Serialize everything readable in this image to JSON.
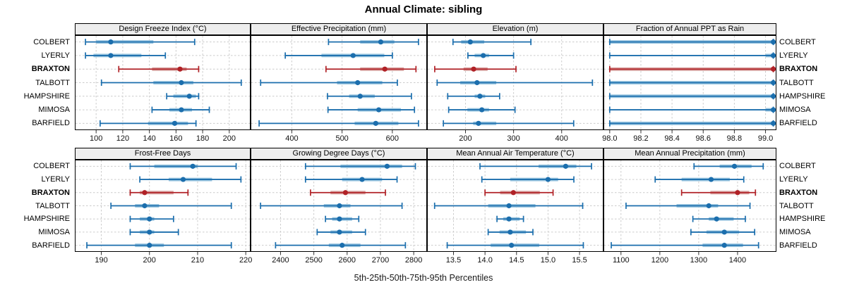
{
  "title": "Annual Climate: sibling",
  "caption": "5th-25th-50th-75th-95th Percentiles",
  "sites": [
    "COLBERT",
    "LYERLY",
    "BRAXTON",
    "TALBOTT",
    "HAMPSHIRE",
    "MIMOSA",
    "BARFIELD"
  ],
  "highlight_site": "BRAXTON",
  "colors": {
    "series_blue": "#1B6EAD",
    "series_blue_light": "#9BC6E0",
    "highlight_red": "#B02126",
    "highlight_red_light": "#D9A6A4",
    "grid": "#cccccc",
    "strip_bg": "#ededed",
    "panel_border": "#000000"
  },
  "chart_data": {
    "type": "scatter",
    "variant": "dot-whisker-percentiles",
    "percentiles": [
      5,
      25,
      50,
      75,
      95
    ],
    "grid": "on",
    "rows_top_to_bottom": [
      "COLBERT",
      "LYERLY",
      "BRAXTON",
      "TALBOTT",
      "HAMPSHIRE",
      "MIMOSA",
      "BARFIELD"
    ],
    "panels": [
      {
        "title": "Design Freeze Index (°C)",
        "band": "top",
        "domain": [
          84,
          216
        ],
        "ticks": [
          "100",
          "120",
          "140",
          "160",
          "180",
          "200"
        ],
        "values": {
          "COLBERT": [
            92,
            100,
            111,
            143,
            174
          ],
          "LYERLY": [
            92,
            98,
            111,
            134,
            152
          ],
          "BRAXTON": [
            117,
            142,
            163,
            168,
            177
          ],
          "TALBOTT": [
            104,
            143,
            164,
            173,
            209
          ],
          "HAMPSHIRE": [
            153,
            158,
            170,
            175,
            177
          ],
          "MIMOSA": [
            142,
            155,
            164,
            172,
            185
          ],
          "BARFIELD": [
            103,
            139,
            159,
            169,
            175
          ]
        }
      },
      {
        "title": "Effective Precipitation (mm)",
        "band": "top",
        "domain": [
          318,
          669
        ],
        "ticks": [
          "400",
          "500",
          "600"
        ],
        "values": {
          "COLBERT": [
            473,
            536,
            577,
            604,
            652
          ],
          "LYERLY": [
            387,
            459,
            522,
            584,
            600
          ],
          "BRAXTON": [
            468,
            536,
            585,
            623,
            647
          ],
          "TALBOTT": [
            338,
            490,
            531,
            580,
            610
          ],
          "HAMPSHIRE": [
            471,
            514,
            536,
            565,
            638
          ],
          "MIMOSA": [
            472,
            531,
            573,
            617,
            644
          ],
          "BARFIELD": [
            335,
            525,
            567,
            612,
            652
          ]
        }
      },
      {
        "title": "Elevation (m)",
        "band": "top",
        "domain": [
          120,
          487
        ],
        "ticks": [
          "200",
          "300",
          "400"
        ],
        "values": {
          "COLBERT": [
            174,
            191,
            210,
            239,
            336
          ],
          "LYERLY": [
            205,
            219,
            237,
            249,
            300
          ],
          "BRAXTON": [
            136,
            196,
            217,
            246,
            305
          ],
          "TALBOTT": [
            141,
            189,
            224,
            264,
            464
          ],
          "HAMPSHIRE": [
            163,
            219,
            230,
            241,
            271
          ],
          "MIMOSA": [
            165,
            204,
            234,
            249,
            303
          ],
          "BARFIELD": [
            154,
            216,
            227,
            264,
            425
          ]
        }
      },
      {
        "title": "Fraction of Annual PPT as Rain",
        "band": "top",
        "domain": [
          97.96,
          99.07
        ],
        "ticks": [
          "98.0",
          "98.2",
          "98.4",
          "98.6",
          "98.8",
          "99.0"
        ],
        "values": {
          "COLBERT": [
            98.0,
            98.0,
            99.05,
            99.05,
            99.05
          ],
          "LYERLY": [
            98.0,
            99.0,
            99.05,
            99.05,
            99.05
          ],
          "BRAXTON": [
            98.0,
            98.0,
            99.05,
            99.05,
            99.05
          ],
          "TALBOTT": [
            98.0,
            98.0,
            99.05,
            99.05,
            99.05
          ],
          "HAMPSHIRE": [
            98.0,
            98.0,
            99.05,
            99.05,
            99.05
          ],
          "MIMOSA": [
            98.0,
            99.0,
            99.05,
            99.05,
            99.05
          ],
          "BARFIELD": [
            98.0,
            98.0,
            99.05,
            99.05,
            99.05
          ]
        }
      },
      {
        "title": "Frost-Free Days",
        "band": "bottom",
        "domain": [
          184.5,
          221
        ],
        "ticks": [
          "190",
          "200",
          "210",
          "220"
        ],
        "values": {
          "COLBERT": [
            196,
            201,
            209,
            210,
            218
          ],
          "LYERLY": [
            198,
            204,
            207,
            213,
            219
          ],
          "BRAXTON": [
            196,
            198,
            199,
            205,
            208
          ],
          "TALBOTT": [
            192,
            197,
            199,
            202,
            217
          ],
          "HAMPSHIRE": [
            196,
            198,
            200,
            201,
            205
          ],
          "MIMOSA": [
            196,
            198,
            200,
            201,
            206
          ],
          "BARFIELD": [
            187,
            197,
            200,
            203,
            217
          ]
        }
      },
      {
        "title": "Growing Degree Days (°C)",
        "band": "bottom",
        "domain": [
          2310,
          2840
        ],
        "ticks": [
          "2400",
          "2500",
          "2600",
          "2700",
          "2800"
        ],
        "values": {
          "COLBERT": [
            2475,
            2580,
            2720,
            2765,
            2805
          ],
          "LYERLY": [
            2475,
            2585,
            2645,
            2705,
            2750
          ],
          "BRAXTON": [
            2490,
            2550,
            2595,
            2655,
            2715
          ],
          "TALBOTT": [
            2340,
            2530,
            2577,
            2610,
            2765
          ],
          "HAMPSHIRE": [
            2535,
            2555,
            2577,
            2615,
            2635
          ],
          "MIMOSA": [
            2510,
            2550,
            2577,
            2615,
            2655
          ],
          "BARFIELD": [
            2385,
            2545,
            2585,
            2640,
            2775
          ]
        }
      },
      {
        "title": "Mean Annual Air Temperature (°C)",
        "band": "bottom",
        "domain": [
          13.08,
          15.88
        ],
        "ticks": [
          "13.5",
          "14.0",
          "14.5",
          "15.0",
          "15.5"
        ],
        "values": {
          "COLBERT": [
            13.92,
            14.85,
            15.28,
            15.45,
            15.69
          ],
          "LYERLY": [
            13.95,
            14.4,
            15.0,
            15.16,
            15.41
          ],
          "BRAXTON": [
            14.0,
            14.24,
            14.45,
            14.87,
            15.08
          ],
          "TALBOTT": [
            13.2,
            14.05,
            14.38,
            14.8,
            15.55
          ],
          "HAMPSHIRE": [
            14.19,
            14.29,
            14.38,
            14.55,
            14.61
          ],
          "MIMOSA": [
            14.05,
            14.23,
            14.4,
            14.65,
            14.76
          ],
          "BARFIELD": [
            13.4,
            14.09,
            14.42,
            14.86,
            15.56
          ]
        }
      },
      {
        "title": "Mean Annual Precipitation (mm)",
        "band": "bottom",
        "domain": [
          1055,
          1500
        ],
        "ticks": [
          "1100",
          "1200",
          "1300",
          "1400"
        ],
        "values": {
          "COLBERT": [
            1288,
            1354,
            1392,
            1436,
            1466
          ],
          "LYERLY": [
            1188,
            1256,
            1332,
            1380,
            1416
          ],
          "BRAXTON": [
            1256,
            1330,
            1400,
            1430,
            1446
          ],
          "TALBOTT": [
            1113,
            1243,
            1326,
            1350,
            1432
          ],
          "HAMPSHIRE": [
            1285,
            1326,
            1346,
            1390,
            1420
          ],
          "MIMOSA": [
            1280,
            1320,
            1366,
            1404,
            1444
          ],
          "BARFIELD": [
            1075,
            1310,
            1366,
            1414,
            1454
          ]
        }
      }
    ]
  }
}
